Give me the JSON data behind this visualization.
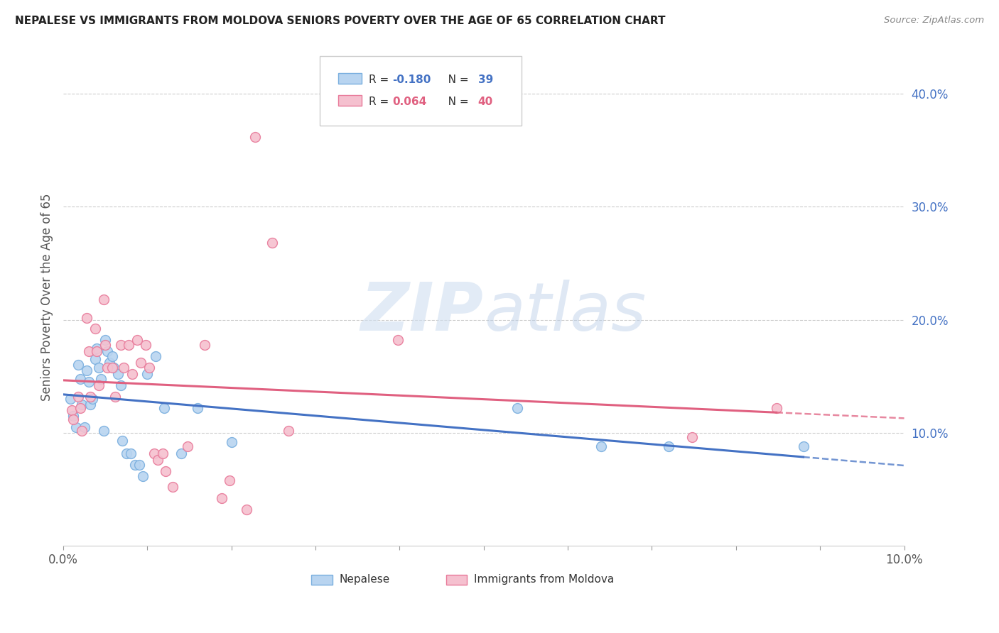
{
  "title": "NEPALESE VS IMMIGRANTS FROM MOLDOVA SENIORS POVERTY OVER THE AGE OF 65 CORRELATION CHART",
  "source": "Source: ZipAtlas.com",
  "ylabel": "Seniors Poverty Over the Age of 65",
  "xlim": [
    0.0,
    0.1
  ],
  "ylim": [
    0.0,
    0.44
  ],
  "yticks": [
    0.1,
    0.2,
    0.3,
    0.4
  ],
  "xticks": [
    0.0,
    0.1
  ],
  "nepalese_color": "#b8d4f0",
  "nepalese_edge": "#7aafdf",
  "moldova_color": "#f5c0cf",
  "moldova_edge": "#e87a9a",
  "line_nepalese_color": "#4472c4",
  "line_moldova_color": "#e06080",
  "legend_R_nepalese": "-0.180",
  "legend_N_nepalese": "39",
  "legend_R_moldova": "0.064",
  "legend_N_moldova": "40",
  "watermark_zip": "ZIP",
  "watermark_atlas": "atlas",
  "nepalese_x": [
    0.0008,
    0.0012,
    0.0015,
    0.0018,
    0.002,
    0.0022,
    0.0025,
    0.0028,
    0.003,
    0.0032,
    0.0035,
    0.0038,
    0.004,
    0.0042,
    0.0045,
    0.0048,
    0.005,
    0.0052,
    0.0055,
    0.0058,
    0.006,
    0.0065,
    0.0068,
    0.007,
    0.0075,
    0.008,
    0.0085,
    0.009,
    0.0095,
    0.01,
    0.011,
    0.012,
    0.014,
    0.016,
    0.02,
    0.054,
    0.064,
    0.072,
    0.088
  ],
  "nepalese_y": [
    0.13,
    0.115,
    0.105,
    0.16,
    0.148,
    0.125,
    0.105,
    0.155,
    0.145,
    0.125,
    0.13,
    0.165,
    0.175,
    0.158,
    0.148,
    0.102,
    0.182,
    0.172,
    0.162,
    0.168,
    0.158,
    0.152,
    0.142,
    0.093,
    0.082,
    0.082,
    0.072,
    0.072,
    0.062,
    0.152,
    0.168,
    0.122,
    0.082,
    0.122,
    0.092,
    0.122,
    0.088,
    0.088,
    0.088
  ],
  "moldova_x": [
    0.001,
    0.0012,
    0.0018,
    0.002,
    0.0022,
    0.0028,
    0.003,
    0.0032,
    0.0038,
    0.004,
    0.0042,
    0.0048,
    0.005,
    0.0052,
    0.0058,
    0.0062,
    0.0068,
    0.0072,
    0.0078,
    0.0082,
    0.0088,
    0.0092,
    0.0098,
    0.0102,
    0.0108,
    0.0112,
    0.0118,
    0.0122,
    0.013,
    0.0148,
    0.0168,
    0.0188,
    0.0198,
    0.0218,
    0.0228,
    0.0248,
    0.0268,
    0.0398,
    0.0748,
    0.0848
  ],
  "moldova_y": [
    0.12,
    0.112,
    0.132,
    0.122,
    0.102,
    0.202,
    0.172,
    0.132,
    0.192,
    0.172,
    0.142,
    0.218,
    0.178,
    0.158,
    0.158,
    0.132,
    0.178,
    0.158,
    0.178,
    0.152,
    0.182,
    0.162,
    0.178,
    0.158,
    0.082,
    0.076,
    0.082,
    0.066,
    0.052,
    0.088,
    0.178,
    0.042,
    0.058,
    0.032,
    0.362,
    0.268,
    0.102,
    0.182,
    0.096,
    0.122
  ],
  "nep_line_x0": 0.0,
  "nep_line_x1": 0.088,
  "nep_line_x_dash0": 0.088,
  "nep_line_x_dash1": 0.1,
  "mol_line_x0": 0.0,
  "mol_line_x1": 0.0848,
  "mol_line_x_dash0": 0.0848,
  "mol_line_x_dash1": 0.1
}
